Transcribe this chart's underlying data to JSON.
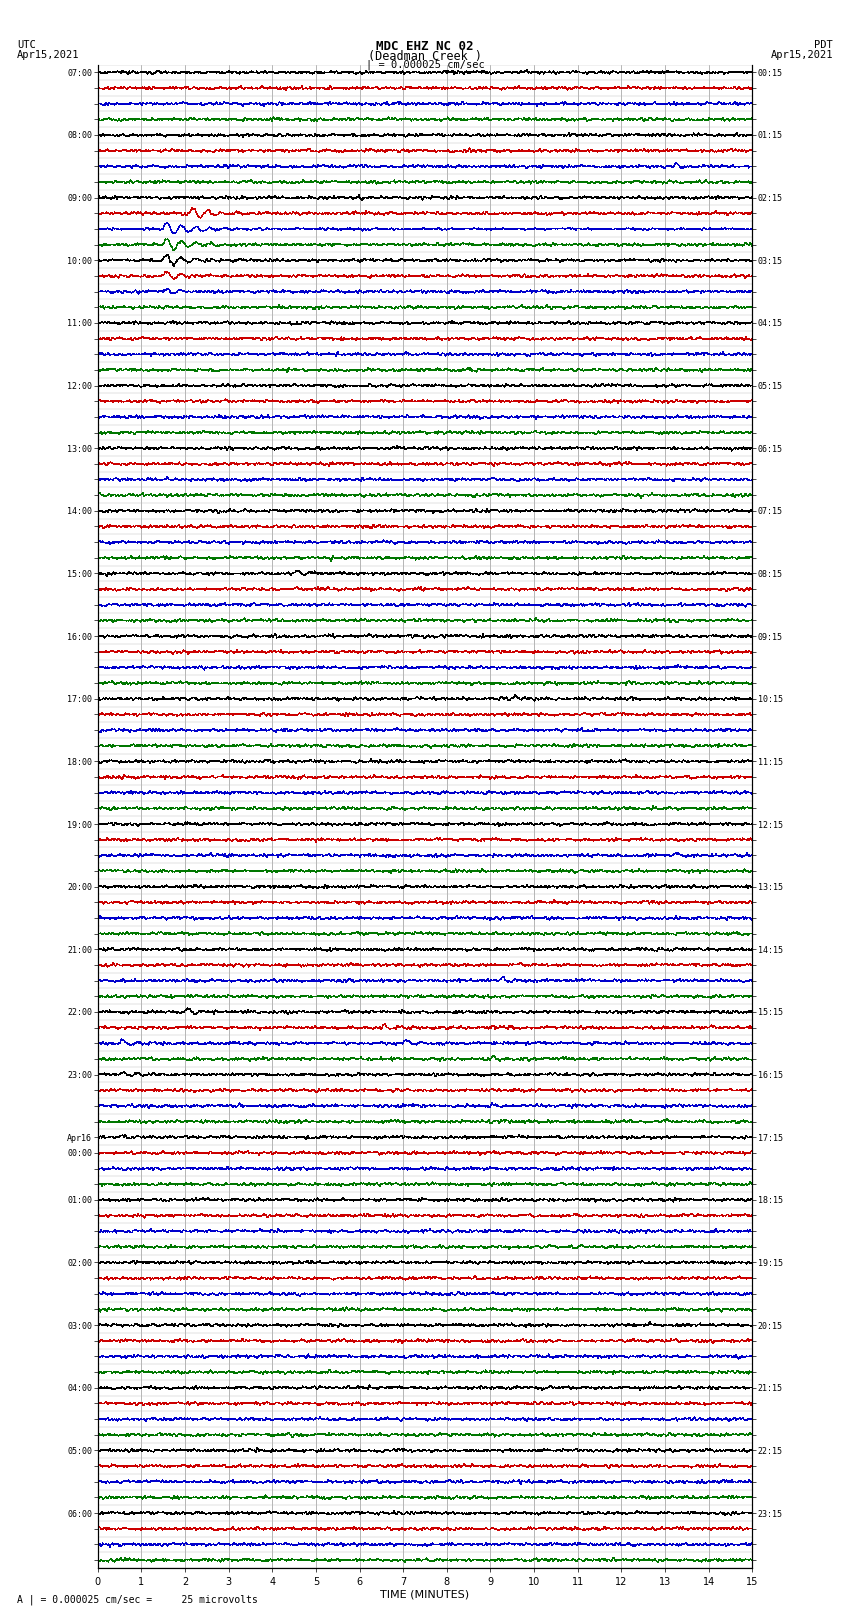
{
  "title_line1": "MDC EHZ NC 02",
  "title_line2": "(Deadman Creek )",
  "title_line3": "| = 0.000025 cm/sec",
  "left_label_top": "UTC",
  "left_label_date": "Apr15,2021",
  "right_label_top": "PDT",
  "right_label_date": "Apr15,2021",
  "xlabel": "TIME (MINUTES)",
  "footer": "A | = 0.000025 cm/sec =     25 microvolts",
  "background_color": "#ffffff",
  "trace_colors": [
    "#000000",
    "#cc0000",
    "#0000cc",
    "#007700"
  ],
  "grid_color_v": "#999999",
  "grid_color_h": "#bbbbbb",
  "n_rows": 96,
  "minutes": 15,
  "noise_base": 0.008,
  "utc_labels": [
    "07:00",
    "",
    "",
    "",
    "08:00",
    "",
    "",
    "",
    "09:00",
    "",
    "",
    "",
    "10:00",
    "",
    "",
    "",
    "11:00",
    "",
    "",
    "",
    "12:00",
    "",
    "",
    "",
    "13:00",
    "",
    "",
    "",
    "14:00",
    "",
    "",
    "",
    "15:00",
    "",
    "",
    "",
    "16:00",
    "",
    "",
    "",
    "17:00",
    "",
    "",
    "",
    "18:00",
    "",
    "",
    "",
    "19:00",
    "",
    "",
    "",
    "20:00",
    "",
    "",
    "",
    "21:00",
    "",
    "",
    "",
    "22:00",
    "",
    "",
    "",
    "23:00",
    "",
    "",
    "",
    "Apr16",
    "00:00",
    "",
    "",
    "01:00",
    "",
    "",
    "",
    "02:00",
    "",
    "",
    "",
    "03:00",
    "",
    "",
    "",
    "04:00",
    "",
    "",
    "",
    "05:00",
    "",
    "",
    "",
    "06:00",
    "",
    "",
    ""
  ],
  "pdt_labels": [
    "00:15",
    "",
    "",
    "",
    "01:15",
    "",
    "",
    "",
    "02:15",
    "",
    "",
    "",
    "03:15",
    "",
    "",
    "",
    "04:15",
    "",
    "",
    "",
    "05:15",
    "",
    "",
    "",
    "06:15",
    "",
    "",
    "",
    "07:15",
    "",
    "",
    "",
    "08:15",
    "",
    "",
    "",
    "09:15",
    "",
    "",
    "",
    "10:15",
    "",
    "",
    "",
    "11:15",
    "",
    "",
    "",
    "12:15",
    "",
    "",
    "",
    "13:15",
    "",
    "",
    "",
    "14:15",
    "",
    "",
    "",
    "15:15",
    "",
    "",
    "",
    "16:15",
    "",
    "",
    "",
    "17:15",
    "",
    "",
    "",
    "18:15",
    "",
    "",
    "",
    "19:15",
    "",
    "",
    "",
    "20:15",
    "",
    "",
    "",
    "21:15",
    "",
    "",
    "",
    "22:15",
    "",
    "",
    "",
    "23:15",
    "",
    "",
    ""
  ],
  "events": [
    {
      "row": 8,
      "t": 1.8,
      "dur": 0.05,
      "amp": 6.0
    },
    {
      "row": 9,
      "t": 2.1,
      "dur": 3.5,
      "amp": 5.0
    },
    {
      "row": 10,
      "t": 1.5,
      "dur": 4.0,
      "amp": 8.0
    },
    {
      "row": 11,
      "t": 1.5,
      "dur": 4.0,
      "amp": 6.0
    },
    {
      "row": 12,
      "t": 1.5,
      "dur": 3.5,
      "amp": 5.0
    },
    {
      "row": 13,
      "t": 1.5,
      "dur": 3.0,
      "amp": 4.0
    },
    {
      "row": 14,
      "t": 1.5,
      "dur": 2.0,
      "amp": 3.0
    },
    {
      "row": 2,
      "t": 8.8,
      "dur": 0.3,
      "amp": 3.0
    },
    {
      "row": 6,
      "t": 13.2,
      "dur": 0.8,
      "amp": 4.0
    },
    {
      "row": 32,
      "t": 4.5,
      "dur": 1.0,
      "amp": 4.0
    },
    {
      "row": 33,
      "t": 4.5,
      "dur": 0.8,
      "amp": 3.0
    },
    {
      "row": 40,
      "t": 9.5,
      "dur": 0.7,
      "amp": 3.5
    },
    {
      "row": 41,
      "t": 11.5,
      "dur": 0.5,
      "amp": 3.0
    },
    {
      "row": 44,
      "t": 3.8,
      "dur": 0.6,
      "amp": 3.0
    },
    {
      "row": 50,
      "t": 13.2,
      "dur": 0.8,
      "amp": 3.0
    },
    {
      "row": 58,
      "t": 9.2,
      "dur": 1.5,
      "amp": 3.5
    },
    {
      "row": 58,
      "t": 11.0,
      "dur": 0.5,
      "amp": 2.5
    },
    {
      "row": 60,
      "t": 2.0,
      "dur": 2.0,
      "amp": 3.5
    },
    {
      "row": 61,
      "t": 6.5,
      "dur": 2.5,
      "amp": 3.0
    },
    {
      "row": 61,
      "t": 14.0,
      "dur": 0.8,
      "amp": 2.5
    },
    {
      "row": 62,
      "t": 0.5,
      "dur": 3.0,
      "amp": 3.0
    },
    {
      "row": 62,
      "t": 7.0,
      "dur": 2.0,
      "amp": 2.5
    },
    {
      "row": 63,
      "t": 9.0,
      "dur": 2.0,
      "amp": 2.0
    },
    {
      "row": 64,
      "t": 0.5,
      "dur": 2.5,
      "amp": 2.5
    },
    {
      "row": 65,
      "t": 7.0,
      "dur": 1.5,
      "amp": 2.0
    },
    {
      "row": 66,
      "t": 9.0,
      "dur": 1.5,
      "amp": 2.0
    },
    {
      "row": 68,
      "t": 0.5,
      "dur": 2.0,
      "amp": 2.5
    },
    {
      "row": 68,
      "t": 14.2,
      "dur": 0.6,
      "amp": 2.0
    },
    {
      "row": 72,
      "t": 12.5,
      "dur": 0.5,
      "amp": 2.0
    },
    {
      "row": 80,
      "t": 8.2,
      "dur": 0.4,
      "amp": 1.8
    },
    {
      "row": 84,
      "t": 14.5,
      "dur": 0.3,
      "amp": 1.8
    }
  ]
}
